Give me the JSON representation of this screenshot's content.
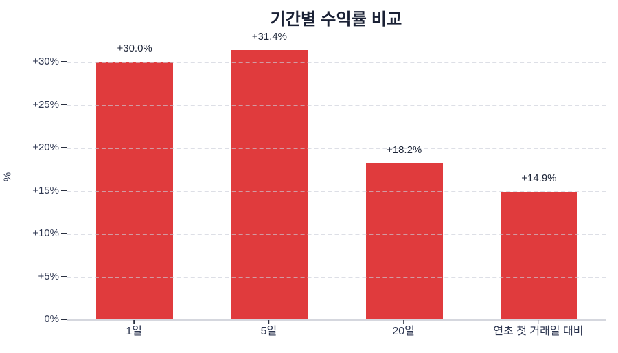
{
  "chart_data": {
    "type": "bar",
    "title": "기간별 수익률 비교",
    "categories": [
      "1일",
      "5일",
      "20일",
      "연초 첫 거래일 대비"
    ],
    "values": [
      30.0,
      31.4,
      18.2,
      14.9
    ],
    "bar_labels": [
      "+30.0%",
      "+31.4%",
      "+18.2%",
      "+14.9%"
    ],
    "xlabel": "",
    "ylabel": "%",
    "ylim": [
      0,
      33.2
    ],
    "yticks": [
      0,
      5,
      10,
      15,
      20,
      25,
      30
    ],
    "ytick_labels": [
      "0%",
      "+5%",
      "+10%",
      "+15%",
      "+20%",
      "+25%",
      "+30%"
    ],
    "grid": "horizontal-dashed",
    "legend": "none",
    "colors": {
      "bar": "#e03b3d",
      "title_text": "#1a2135",
      "tick_text": "#2d3650",
      "value_label_text": "#1e2638",
      "gridline": "#cbced8",
      "spine": "#c8ccd5",
      "background": "#ffffff"
    }
  }
}
